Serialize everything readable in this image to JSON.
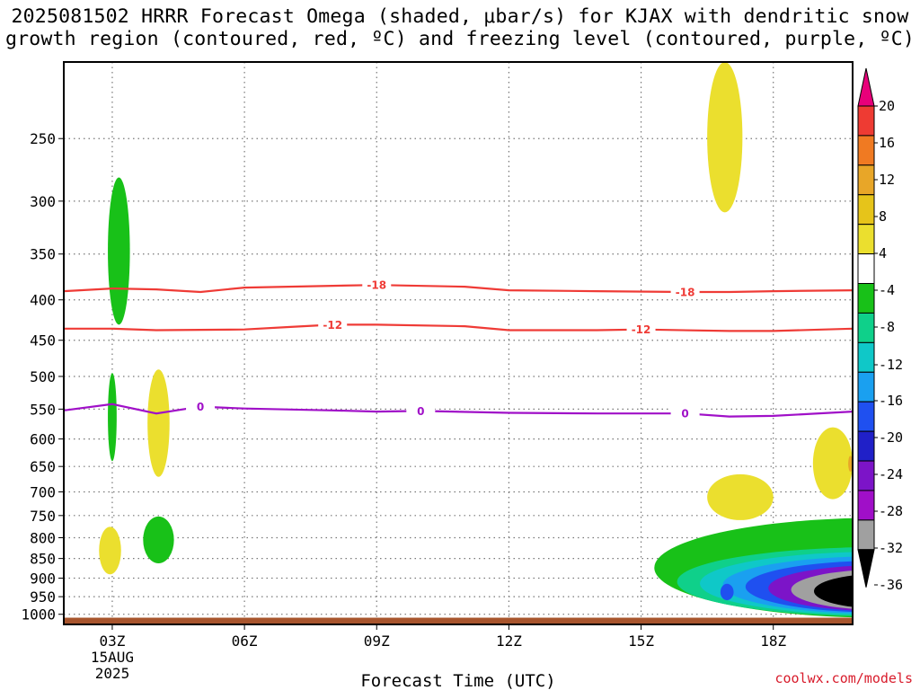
{
  "title": {
    "line1": "2025081502 HRRR Forecast Omega (shaded, μbar/s) for KJAX with dendritic snow",
    "line2": "growth region (contoured, red, ºC) and freezing level (contoured, purple, ºC)"
  },
  "credit": "coolwx.com/models",
  "chart_data": {
    "type": "time-height cross-section",
    "xlabel": "Forecast Time (UTC)",
    "x_range_hours": [
      1.9,
      19.8
    ],
    "x_ticks": [
      {
        "hour": 3,
        "label": "03Z",
        "sublabel": [
          "15AUG",
          "2025"
        ]
      },
      {
        "hour": 6,
        "label": "06Z"
      },
      {
        "hour": 9,
        "label": "09Z"
      },
      {
        "hour": 12,
        "label": "12Z"
      },
      {
        "hour": 15,
        "label": "15Z"
      },
      {
        "hour": 18,
        "label": "18Z"
      }
    ],
    "y_scale": "log pressure",
    "y_range_mb": [
      200,
      1030
    ],
    "y_ticks": [
      250,
      300,
      350,
      400,
      450,
      500,
      550,
      600,
      650,
      700,
      750,
      800,
      850,
      900,
      950,
      1000
    ],
    "colorbar": {
      "labels": [
        "20",
        "16",
        "12",
        "8",
        "4",
        "-4",
        "-8",
        "-12",
        "-16",
        "-20",
        "-24",
        "-28",
        "-32",
        "-36"
      ],
      "colors": [
        "#e8007a",
        "#ee3b33",
        "#f07a22",
        "#e8a628",
        "#e6c41a",
        "#ebdf2e",
        "#ffffff",
        "#18c118",
        "#0fd08a",
        "#0fc8c8",
        "#1aa0f0",
        "#1f50f0",
        "#2020c8",
        "#7c14c8",
        "#a00fc8",
        "#a0a0a0",
        "#000000"
      ]
    },
    "contours": [
      {
        "name": "-18",
        "color": "#ef3b36",
        "labels_at_hours": [
          9.0,
          16.0
        ],
        "points": [
          [
            1.9,
            390
          ],
          [
            3,
            387
          ],
          [
            4,
            388
          ],
          [
            5,
            391
          ],
          [
            6,
            386
          ],
          [
            8,
            384
          ],
          [
            9,
            383
          ],
          [
            11,
            385
          ],
          [
            12,
            389
          ],
          [
            14,
            390
          ],
          [
            16,
            391
          ],
          [
            17,
            391
          ],
          [
            18,
            390
          ],
          [
            19.8,
            389
          ]
        ]
      },
      {
        "name": "-12",
        "color": "#ef3b36",
        "labels_at_hours": [
          8.0,
          15.0
        ],
        "points": [
          [
            1.9,
            435
          ],
          [
            3,
            435
          ],
          [
            4,
            437
          ],
          [
            6,
            436
          ],
          [
            7,
            433
          ],
          [
            8,
            430
          ],
          [
            9,
            430
          ],
          [
            11,
            432
          ],
          [
            12,
            437
          ],
          [
            14,
            437
          ],
          [
            15,
            436
          ],
          [
            17,
            438
          ],
          [
            18,
            438
          ],
          [
            19.8,
            435
          ]
        ]
      },
      {
        "name": "0",
        "color": "#a010c8",
        "labels_at_hours": [
          5.0,
          10.0,
          16.0
        ],
        "points": [
          [
            1.9,
            552
          ],
          [
            3,
            542
          ],
          [
            4,
            557
          ],
          [
            5,
            546
          ],
          [
            6,
            549
          ],
          [
            8,
            552
          ],
          [
            9,
            554
          ],
          [
            10,
            553
          ],
          [
            12,
            556
          ],
          [
            14,
            557
          ],
          [
            16,
            557
          ],
          [
            17,
            562
          ],
          [
            18,
            561
          ],
          [
            19.8,
            554
          ]
        ]
      }
    ],
    "omega_regions": [
      {
        "value": "-4 to -8",
        "color": "#18c118",
        "hour_range": [
          2.9,
          3.4
        ],
        "pressure_range_mb": [
          280,
          430
        ]
      },
      {
        "value": "-4 to -8",
        "color": "#18c118",
        "hour_range": [
          2.9,
          3.1
        ],
        "pressure_range_mb": [
          495,
          640
        ]
      },
      {
        "value": "4 to 8",
        "color": "#ebdf2e",
        "hour_range": [
          3.8,
          4.3
        ],
        "pressure_range_mb": [
          490,
          670
        ]
      },
      {
        "value": "4 to 8",
        "color": "#ebdf2e",
        "hour_range": [
          2.7,
          3.2
        ],
        "pressure_range_mb": [
          775,
          890
        ]
      },
      {
        "value": "-4 to -8",
        "color": "#18c118",
        "hour_range": [
          3.7,
          4.4
        ],
        "pressure_range_mb": [
          752,
          862
        ]
      },
      {
        "value": "4 to 8",
        "color": "#ebdf2e",
        "hour_range": [
          16.5,
          17.3
        ],
        "pressure_range_mb": [
          200,
          310
        ]
      },
      {
        "value": "4 to 8",
        "color": "#ebdf2e",
        "hour_range": [
          16.5,
          18.0
        ],
        "pressure_range_mb": [
          665,
          760
        ]
      },
      {
        "value": "4 to 8",
        "color": "#ebdf2e",
        "hour_range": [
          18.9,
          19.8
        ],
        "pressure_range_mb": [
          580,
          715
        ]
      },
      {
        "value": "8 to 12",
        "color": "#e8a628",
        "hour_range": [
          19.7,
          19.8
        ],
        "pressure_range_mb": [
          630,
          660
        ]
      },
      {
        "value": "-4 to -36",
        "colors": [
          "#18c118",
          "#0fd08a",
          "#0fc8c8",
          "#1aa0f0",
          "#1f50f0",
          "#7c14c8",
          "#a0a0a0",
          "#000000"
        ],
        "hour_range": [
          15.3,
          19.8
        ],
        "pressure_range_mb": [
          755,
          1010
        ]
      },
      {
        "value": "-16 to -20",
        "color": "#1f50f0",
        "hour_range": [
          16.8,
          17.1
        ],
        "pressure_range_mb": [
          915,
          960
        ]
      }
    ],
    "ground": {
      "color": "#a8552d",
      "pressure_mb": [
        1010,
        1030
      ]
    }
  }
}
